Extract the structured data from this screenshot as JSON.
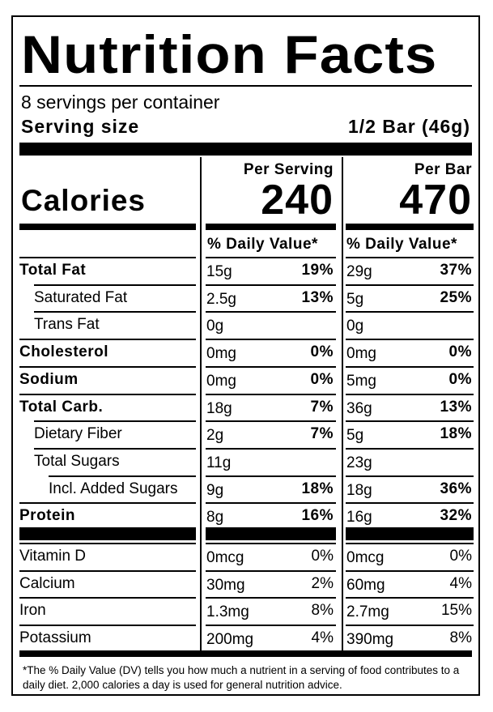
{
  "title": "Nutrition Facts",
  "servings_per_container": "8 servings per container",
  "serving_size_label": "Serving size",
  "serving_size_value": "1/2 Bar (46g)",
  "calories_label": "Calories",
  "columns": [
    {
      "heading": "Per Serving",
      "calories": "240",
      "dv_heading": "% Daily Value*"
    },
    {
      "heading": "Per Bar",
      "calories": "470",
      "dv_heading": "% Daily Value*"
    }
  ],
  "nutrients": [
    {
      "name": "Total Fat",
      "serving": "15g",
      "serving_dv": "19%",
      "bar": "29g",
      "bar_dv": "37%"
    },
    {
      "name": "Saturated Fat",
      "serving": "2.5g",
      "serving_dv": "13%",
      "bar": "5g",
      "bar_dv": "25%"
    },
    {
      "name": "Trans Fat",
      "serving": "0g",
      "serving_dv": "",
      "bar": "0g",
      "bar_dv": ""
    },
    {
      "name": "Cholesterol",
      "serving": "0mg",
      "serving_dv": "0%",
      "bar": "0mg",
      "bar_dv": "0%"
    },
    {
      "name": "Sodium",
      "serving": "0mg",
      "serving_dv": "0%",
      "bar": "5mg",
      "bar_dv": "0%"
    },
    {
      "name": "Total Carb.",
      "serving": "18g",
      "serving_dv": "7%",
      "bar": "36g",
      "bar_dv": "13%"
    },
    {
      "name": "Dietary Fiber",
      "serving": "2g",
      "serving_dv": "7%",
      "bar": "5g",
      "bar_dv": "18%"
    },
    {
      "name": "Total Sugars",
      "serving": "11g",
      "serving_dv": "",
      "bar": "23g",
      "bar_dv": ""
    },
    {
      "name": "Incl. Added Sugars",
      "serving": "9g",
      "serving_dv": "18%",
      "bar": "18g",
      "bar_dv": "36%"
    },
    {
      "name": "Protein",
      "serving": "8g",
      "serving_dv": "16%",
      "bar": "16g",
      "bar_dv": "32%"
    }
  ],
  "vitamins": [
    {
      "name": "Vitamin D",
      "serving": "0mcg",
      "serving_dv": "0%",
      "bar": "0mcg",
      "bar_dv": "0%"
    },
    {
      "name": "Calcium",
      "serving": "30mg",
      "serving_dv": "2%",
      "bar": "60mg",
      "bar_dv": "4%"
    },
    {
      "name": "Iron",
      "serving": "1.3mg",
      "serving_dv": "8%",
      "bar": "2.7mg",
      "bar_dv": "15%"
    },
    {
      "name": "Potassium",
      "serving": "200mg",
      "serving_dv": "4%",
      "bar": "390mg",
      "bar_dv": "8%"
    }
  ],
  "footnote": "*The % Daily Value (DV) tells you how much a nutrient in a serving of food contributes to a daily diet. 2,000 calories a day is used for general nutrition advice."
}
